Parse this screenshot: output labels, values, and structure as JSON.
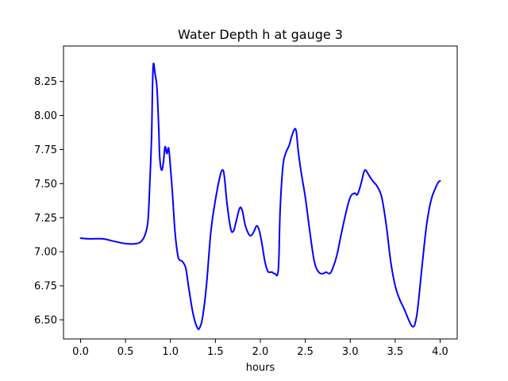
{
  "chart_data": {
    "type": "line",
    "title": "Water Depth h at gauge 3",
    "xlabel": "hours",
    "ylabel": "",
    "xlim": [
      -0.19,
      4.19
    ],
    "ylim": [
      6.36,
      8.51
    ],
    "grid": false,
    "x_ticks": [
      0.0,
      0.5,
      1.0,
      1.5,
      2.0,
      2.5,
      3.0,
      3.5,
      4.0
    ],
    "x_tick_labels": [
      "0.0",
      "0.5",
      "1.0",
      "1.5",
      "2.0",
      "2.5",
      "3.0",
      "3.5",
      "4.0"
    ],
    "y_ticks": [
      6.5,
      6.75,
      7.0,
      7.25,
      7.5,
      7.75,
      8.0,
      8.25
    ],
    "y_tick_labels": [
      "6.50",
      "6.75",
      "7.00",
      "7.25",
      "7.50",
      "7.75",
      "8.00",
      "8.25"
    ],
    "series": [
      {
        "color": "#0000ff",
        "x": [
          0.0,
          0.1,
          0.25,
          0.35,
          0.5,
          0.62,
          0.68,
          0.72,
          0.75,
          0.77,
          0.79,
          0.8,
          0.81,
          0.83,
          0.85,
          0.87,
          0.88,
          0.9,
          0.92,
          0.94,
          0.96,
          0.98,
          1.0,
          1.02,
          1.05,
          1.08,
          1.1,
          1.13,
          1.17,
          1.2,
          1.25,
          1.3,
          1.33,
          1.36,
          1.4,
          1.45,
          1.5,
          1.55,
          1.58,
          1.6,
          1.63,
          1.67,
          1.7,
          1.73,
          1.77,
          1.8,
          1.83,
          1.87,
          1.9,
          1.93,
          1.96,
          1.99,
          2.02,
          2.05,
          2.08,
          2.1,
          2.13,
          2.16,
          2.2,
          2.22,
          2.25,
          2.28,
          2.32,
          2.35,
          2.38,
          2.4,
          2.42,
          2.45,
          2.5,
          2.55,
          2.6,
          2.65,
          2.7,
          2.73,
          2.77,
          2.8,
          2.85,
          2.9,
          2.95,
          3.0,
          3.05,
          3.08,
          3.12,
          3.15,
          3.17,
          3.2,
          3.25,
          3.3,
          3.35,
          3.4,
          3.45,
          3.5,
          3.55,
          3.6,
          3.65,
          3.68,
          3.7,
          3.72,
          3.75,
          3.8,
          3.85,
          3.9,
          3.95,
          3.98,
          4.0
        ],
        "y": [
          7.1,
          7.095,
          7.095,
          7.08,
          7.06,
          7.06,
          7.08,
          7.13,
          7.23,
          7.5,
          7.85,
          8.2,
          8.38,
          8.3,
          8.2,
          7.9,
          7.7,
          7.6,
          7.65,
          7.77,
          7.72,
          7.76,
          7.62,
          7.45,
          7.15,
          6.98,
          6.94,
          6.93,
          6.88,
          6.75,
          6.55,
          6.44,
          6.45,
          6.53,
          6.75,
          7.15,
          7.38,
          7.55,
          7.6,
          7.55,
          7.35,
          7.17,
          7.15,
          7.22,
          7.32,
          7.3,
          7.2,
          7.13,
          7.12,
          7.15,
          7.19,
          7.15,
          7.05,
          6.93,
          6.86,
          6.85,
          6.85,
          6.84,
          6.87,
          7.3,
          7.62,
          7.72,
          7.78,
          7.85,
          7.9,
          7.88,
          7.75,
          7.6,
          7.4,
          7.15,
          6.93,
          6.85,
          6.84,
          6.85,
          6.84,
          6.87,
          6.97,
          7.13,
          7.28,
          7.4,
          7.43,
          7.42,
          7.5,
          7.58,
          7.6,
          7.57,
          7.52,
          7.48,
          7.4,
          7.2,
          6.93,
          6.75,
          6.65,
          6.58,
          6.5,
          6.46,
          6.45,
          6.47,
          6.58,
          6.9,
          7.2,
          7.38,
          7.47,
          7.51,
          7.52
        ]
      }
    ]
  }
}
